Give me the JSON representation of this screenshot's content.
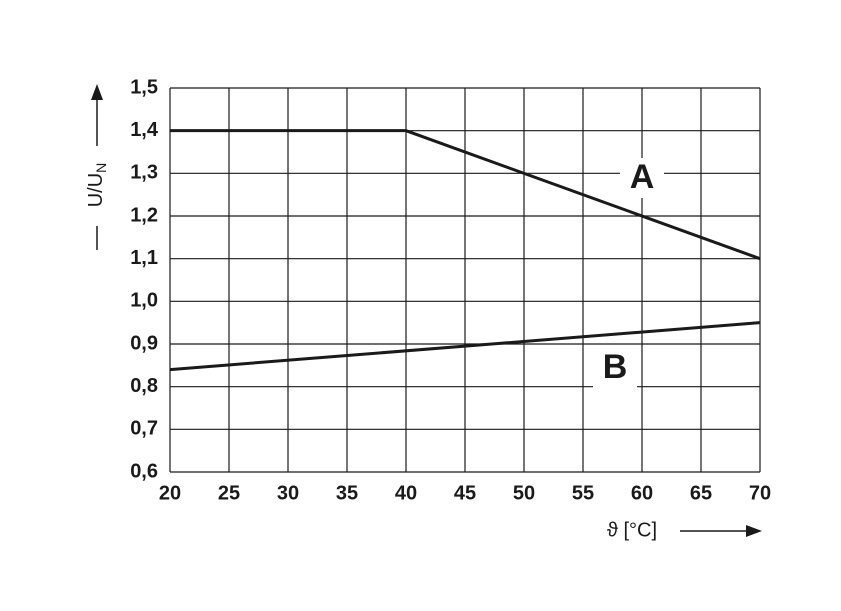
{
  "chart_data": {
    "type": "line",
    "xlabel": "ϑ [°C]",
    "ylabel": "U/U",
    "ylabel_subscript": "N",
    "xlim": [
      20,
      70
    ],
    "xticks": [
      20,
      25,
      30,
      35,
      40,
      45,
      50,
      55,
      60,
      65,
      70
    ],
    "ylim": [
      0.6,
      1.5
    ],
    "yticks": [
      {
        "value": 0.6,
        "label": "0,6"
      },
      {
        "value": 0.7,
        "label": "0,7"
      },
      {
        "value": 0.8,
        "label": "0,8"
      },
      {
        "value": 0.9,
        "label": "0,9"
      },
      {
        "value": 1.0,
        "label": "1,0"
      },
      {
        "value": 1.1,
        "label": "1,1"
      },
      {
        "value": 1.2,
        "label": "1,2"
      },
      {
        "value": 1.3,
        "label": "1,3"
      },
      {
        "value": 1.4,
        "label": "1,4"
      },
      {
        "value": 1.5,
        "label": "1,5"
      }
    ],
    "grid": true,
    "series": [
      {
        "name": "A",
        "color": "#1a1a1a",
        "x": [
          20,
          40,
          70
        ],
        "values": [
          1.4,
          1.4,
          1.1
        ]
      },
      {
        "name": "B",
        "color": "#1a1a1a",
        "x": [
          20,
          70
        ],
        "values": [
          0.84,
          0.95
        ]
      }
    ]
  }
}
